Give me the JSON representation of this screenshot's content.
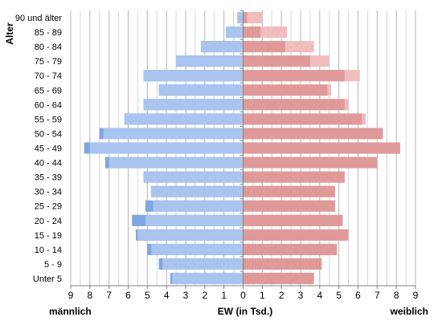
{
  "chart_data": {
    "type": "bar",
    "orientation": "horizontal",
    "subtype": "population-pyramid",
    "title": "",
    "y_axis_label": "Alter",
    "x_axis_label": "EW (in Tsd.)",
    "left_side_label": "männlich",
    "right_side_label": "weiblich",
    "x_ticks": [
      "9",
      "8",
      "7",
      "6",
      "5",
      "4",
      "3",
      "2",
      "1",
      "0",
      "1",
      "2",
      "3",
      "4",
      "5",
      "6",
      "7",
      "8",
      "9"
    ],
    "xlim": [
      -9,
      9
    ],
    "grid": "vertical",
    "categories": [
      "90 und älter",
      "85 - 89",
      "80 - 84",
      "75 - 79",
      "70 - 74",
      "65 - 69",
      "60 - 64",
      "55 - 59",
      "50 - 54",
      "45 - 49",
      "40 - 44",
      "35 - 39",
      "30 - 34",
      "25 - 29",
      "20 - 24",
      "15 - 19",
      "10 - 14",
      "5 - 9",
      "Unter 5"
    ],
    "series": [
      {
        "name": "",
        "side": "left",
        "color": "#7ea6e0",
        "values": [
          0.3,
          0.9,
          2.2,
          3.5,
          5.2,
          4.4,
          5.2,
          6.2,
          7.5,
          8.3,
          7.2,
          5.2,
          4.8,
          5.1,
          5.8,
          5.6,
          5.0,
          4.4,
          3.8
        ]
      },
      {
        "name": "",
        "side": "left",
        "color": "#a9c4ee",
        "values": [
          0.3,
          0.9,
          2.2,
          3.5,
          5.2,
          4.4,
          5.2,
          6.2,
          7.3,
          8.0,
          7.0,
          5.2,
          4.8,
          4.7,
          5.1,
          5.5,
          4.8,
          4.2,
          3.7
        ]
      },
      {
        "name": "",
        "side": "right",
        "color": "#f0bcbc",
        "values": [
          1.0,
          2.3,
          3.7,
          4.5,
          6.1,
          4.6,
          5.5,
          6.4,
          7.3,
          8.2,
          7.0,
          5.3,
          4.8,
          4.8,
          5.2,
          5.5,
          4.9,
          4.1,
          3.7
        ]
      },
      {
        "name": "",
        "side": "right",
        "color": "#e09999",
        "values": [
          0.2,
          0.9,
          2.2,
          3.5,
          5.3,
          4.4,
          5.3,
          6.2,
          7.3,
          8.2,
          7.0,
          5.3,
          4.8,
          4.8,
          5.2,
          5.5,
          4.9,
          4.1,
          3.7
        ]
      }
    ]
  }
}
